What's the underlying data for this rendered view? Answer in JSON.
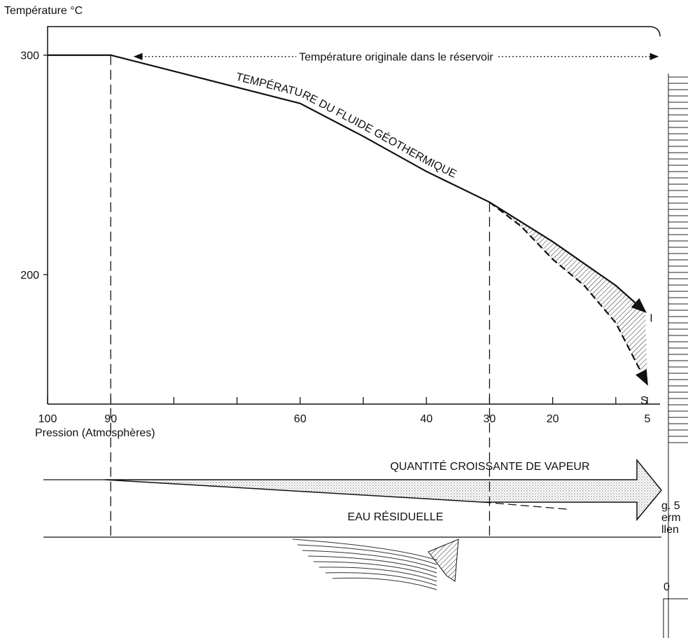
{
  "chart_data": {
    "type": "line",
    "y_label": "Température °C",
    "x_label": "Pression (Atmosphères)",
    "curve_label": "TEMPÉRATURE DU FLUIDE GÉOTHERMIQUE",
    "reservoir_label": "Température originale dans le réservoir",
    "steam_label": "QUANTITÉ CROISSANTE DE VAPEUR",
    "water_label": "EAU RÉSIDUELLE",
    "xlim": [
      100,
      3
    ],
    "ylim": [
      141,
      313
    ],
    "xticks": [
      100,
      90,
      60,
      40,
      30,
      20,
      5
    ],
    "xminor_ticks": [
      80,
      70,
      50,
      10
    ],
    "yticks": [
      300,
      200
    ],
    "color": "#111111",
    "series": [
      {
        "name": "I",
        "style": "solid",
        "x": [
          100,
          90,
          75,
          60,
          50,
          40,
          30,
          20,
          10,
          5.3
        ],
        "values": [
          300,
          300,
          289,
          278,
          263,
          247,
          233,
          215,
          195,
          183
        ]
      },
      {
        "name": "S",
        "style": "dashed",
        "x": [
          30,
          25,
          20,
          15,
          10,
          5
        ],
        "values": [
          233,
          222,
          207,
          195,
          178,
          150
        ]
      }
    ],
    "margin_text": [
      "g. 5",
      "erm",
      "llen",
      "0"
    ]
  }
}
